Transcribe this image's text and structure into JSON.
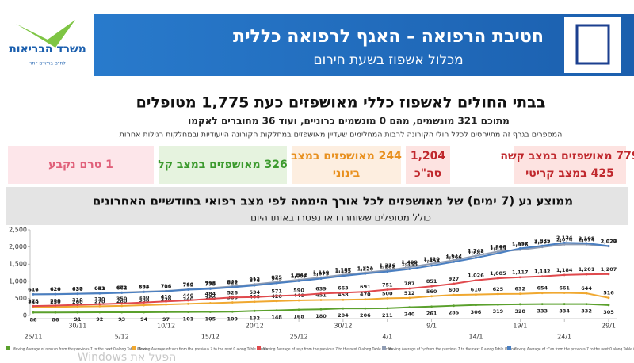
{
  "header": {
    "title": "חטיבת הרפואה – האגף לרפואה כללית",
    "subtitle": "מכלול אשפוז בשעת חירום",
    "logo_text": "משרד הבריאות",
    "logo_tagline": "לחיים בריאים יותר"
  },
  "summary": {
    "headline": "בבתי החולים לאשפוז כללי מאושפזים כעת 1,775 מטופלים",
    "subheadline": "מתוכם 321 מונשמים, מהם 0 מונשמים כרוניים, ועוד 36 מחוברים לאקמו",
    "note": "המספרים בגרף זה מתייחסים לכלל חולי הקורונה לרבות המחלימים שעדיין מאושפזים במחלקות הקורונה הייעודיות ובמחלקות רגילות אחרות"
  },
  "boxes": [
    {
      "lines": [
        "779 מאושפזים במצב קשה",
        "425 במצב קריטי"
      ],
      "color": "#c0282d",
      "background": "#fde3e1"
    },
    {
      "lines": [
        "1,204",
        "סה\"כ"
      ],
      "color": "#c0282d",
      "background": "#fde3e1"
    },
    {
      "lines": [
        "244 מאושפזים במצב",
        "בינוני"
      ],
      "color": "#e8901f",
      "background": "#fdeee0"
    },
    {
      "lines": [
        "326 מאושפזים במצב קל"
      ],
      "color": "#3c9a2e",
      "background": "#e6f3df"
    },
    {
      "lines": [
        "1 טרם נקבע"
      ],
      "color": "#e0607a",
      "background": "#fde6ea"
    }
  ],
  "chart_header": {
    "title": "ממוצע נע (7 ימים) של מאושפזים לכל אורך היממה לפי מצב רפואי בחודשיים האחרונים",
    "subtitle": "כולל מטופלים ששוחררו או נפטרו באותו היום"
  },
  "chart_data": {
    "type": "line",
    "ylim": [
      0,
      2500
    ],
    "grid": false,
    "yticks": [
      0,
      500,
      {
        "value": 1000,
        "label": "1,000"
      },
      {
        "value": 1500,
        "label": "1,500"
      },
      {
        "value": 2000,
        "label": "2,000"
      },
      {
        "value": 2500,
        "label": "2,500"
      }
    ],
    "categories": [
      "25/11",
      null,
      "30/11",
      null,
      "5/12",
      null,
      "10/12",
      null,
      "15/12",
      null,
      "20/12",
      null,
      "25/12",
      null,
      "30/12",
      null,
      "4/1",
      null,
      "9/1",
      null,
      "14/1",
      null,
      "19/1",
      null,
      "24/1",
      null,
      "29/1"
    ],
    "series": [
      {
        "name": "Moving Average of מונשמים from the previous 7 to the next 0 along Table (Acros...",
        "color": "#5aa02c",
        "values": [
          86,
          86,
          91,
          92,
          93,
          94,
          97,
          101,
          105,
          109,
          132,
          148,
          168,
          180,
          204,
          206,
          211,
          240,
          261,
          285,
          306,
          319,
          328,
          333,
          334,
          332,
          305
        ]
      },
      {
        "name": "Moving Average of בינוני from the previous 7 to the next 0 along Table (Acros...",
        "color": "#f0a830",
        "values": [
          240,
          250,
          260,
          270,
          280,
          300,
          320,
          340,
          360,
          380,
          400,
          420,
          440,
          451,
          458,
          470,
          500,
          512,
          560,
          600,
          610,
          625,
          632,
          654,
          661,
          644,
          516
        ]
      },
      {
        "name": "Moving Average of קשה from the previous 7 to the next 0 along Table (Acros...",
        "color": "#e0494d",
        "values": [
          275,
          290,
          310,
          330,
          350,
          380,
          410,
          440,
          484,
          526,
          534,
          571,
          590,
          639,
          663,
          691,
          751,
          787,
          851,
          927,
          1026,
          1085,
          1117,
          1142,
          1184,
          1201,
          1207
        ],
        "value_labels": [
          "275",
          "290",
          "310",
          "330",
          "350",
          "380",
          "410",
          "440",
          "484",
          "526",
          "534",
          "571",
          "590",
          "639",
          "663",
          "691",
          "751",
          "787",
          "851",
          "927",
          "1,026",
          "1,085",
          "1,117",
          "1,142",
          "1,184",
          "1,201",
          "1,207"
        ]
      },
      {
        "name": "Moving Average of קל from the previous 7 to the next 0 along Table (Acros...",
        "color": "#8f9cb3",
        "values": [
          617,
          626,
          637,
          651,
          672,
          694,
          716,
          760,
          798,
          849,
          913,
          975,
          1042,
          1110,
          1187,
          1251,
          1316,
          1409,
          1510,
          1612,
          1743,
          1866,
          1916,
          1997,
          2074,
          2074,
          2020
        ],
        "value_labels": [
          "617",
          "626",
          "637",
          "651",
          "672",
          "694",
          "716",
          "760",
          "798",
          "849",
          "913",
          "975",
          "1,042",
          "1,110",
          "1,187",
          "1,251",
          "1,316",
          "1,409",
          "1,510",
          "1,612",
          "1,743",
          "1,866",
          "1,916",
          "1,997",
          "2,074",
          "2,074",
          "2,020"
        ]
      },
      {
        "name": "Moving Average of סה\"כ from the previous 7 to the next 0 along Table (Acros...",
        "color": "#4a7fc1",
        "values": [
          616,
          620,
          630,
          643,
          661,
          683,
          705,
          752,
          775,
          821,
          876,
          943,
          1007,
          1075,
          1155,
          1220,
          1282,
          1355,
          1454,
          1566,
          1685,
          1815,
          1957,
          2035,
          2124,
          2108,
          2027
        ],
        "value_labels": [
          "616",
          "620",
          "630",
          "643",
          "661",
          "683",
          "705",
          "752",
          "775",
          "821",
          "876",
          "943",
          "1,007",
          "1,075",
          "1,155",
          "1,220",
          "1,282",
          "1,355",
          "1,454",
          "1,566",
          "1,685",
          "1,815",
          "1,957",
          "2,035",
          "2,124",
          "2,108",
          "2,027"
        ]
      }
    ]
  },
  "watermark": "הפעל את Windows"
}
